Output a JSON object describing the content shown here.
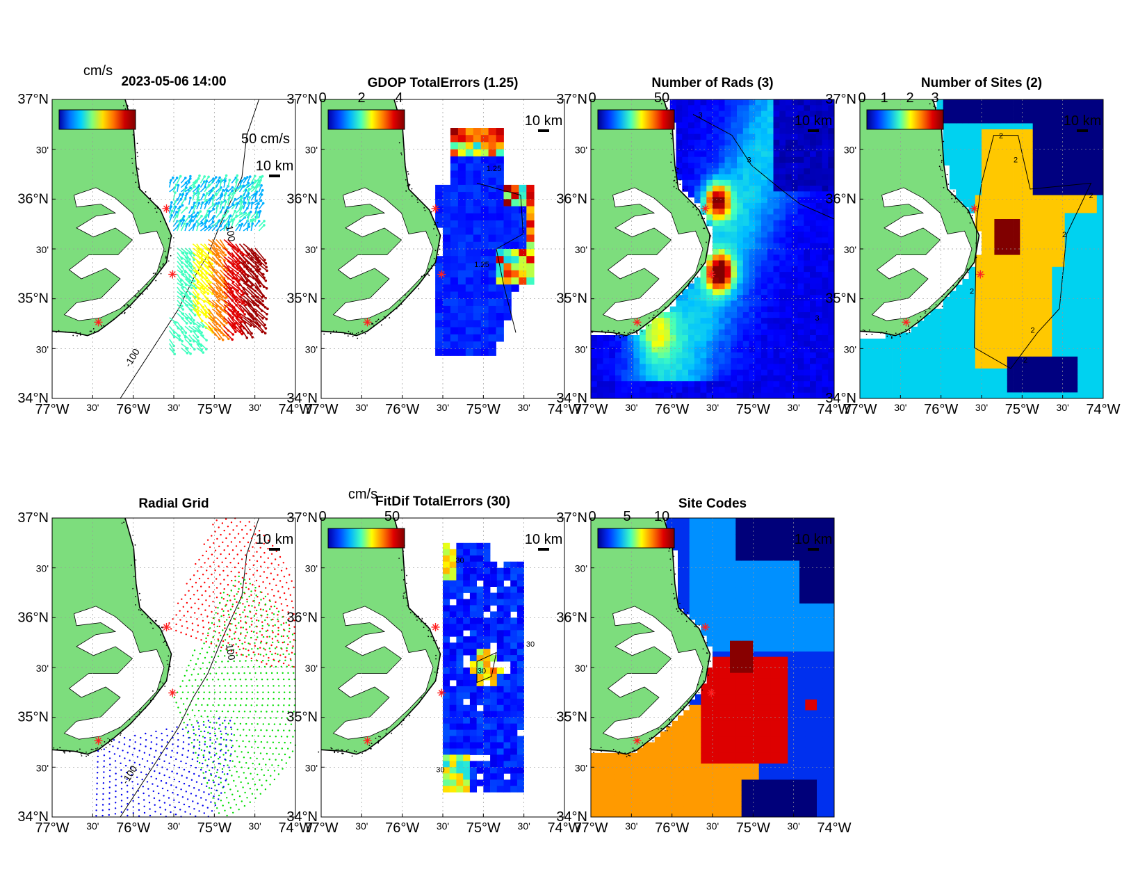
{
  "lon_ticks": [
    {
      "label": "77°W",
      "major": true
    },
    {
      "label": "30'",
      "major": false
    },
    {
      "label": "76°W",
      "major": true
    },
    {
      "label": "30'",
      "major": false
    },
    {
      "label": "75°W",
      "major": true
    },
    {
      "label": "30'",
      "major": false
    },
    {
      "label": "74°W",
      "major": true
    }
  ],
  "lat_ticks": [
    {
      "label": "37°N",
      "major": true
    },
    {
      "label": "30'",
      "major": false
    },
    {
      "label": "36°N",
      "major": true
    },
    {
      "label": "30'",
      "major": false
    },
    {
      "label": "35°N",
      "major": true
    },
    {
      "label": "30'",
      "major": false
    },
    {
      "label": "34°N",
      "major": true
    }
  ],
  "scale_bar_label": "10 km",
  "contour_label": "-100",
  "contour_label_b": "100",
  "panels": [
    {
      "id": "total-currents",
      "title": "2023-05-06 14:00",
      "colorbar": {
        "unit": "cm/s",
        "ticks": [],
        "colors": [
          "#0000aa",
          "#0070ff",
          "#00d0ff",
          "#7dff7d",
          "#ffe000",
          "#ff7000",
          "#cc0000",
          "#800000"
        ]
      },
      "reference_vector_label": "50 cm/s",
      "field": "vectors"
    },
    {
      "id": "gdop",
      "title": "GDOP TotalErrors (1.25)",
      "colorbar": {
        "unit": "",
        "ticks": [
          "0",
          "2",
          "4"
        ],
        "colors": [
          "#0000aa",
          "#0040ff",
          "#00b0ff",
          "#40ffc0",
          "#ffff00",
          "#ff8000",
          "#e00000",
          "#800000"
        ]
      },
      "contour_value": "1.25",
      "field": "gdop"
    },
    {
      "id": "num-rads",
      "title": "Number of Rads (3)",
      "colorbar": {
        "unit": "",
        "ticks": [
          "0",
          "50"
        ],
        "colors": [
          "#00008f",
          "#0030ff",
          "#00a0ff",
          "#40ffc0",
          "#ffff00",
          "#ff8000",
          "#e00000",
          "#800000"
        ]
      },
      "contour_value": "3",
      "field": "rads"
    },
    {
      "id": "num-sites",
      "title": "Number of Sites (2)",
      "colorbar": {
        "unit": "",
        "ticks": [
          "0",
          "1",
          "2",
          "3"
        ],
        "colors": [
          "#00008f",
          "#0030ff",
          "#00a0ff",
          "#40ffc0",
          "#ffff00",
          "#ff8000",
          "#e00000",
          "#800000"
        ]
      },
      "contour_value": "2",
      "field": "sites",
      "colors": {
        "one": "#00d2f0",
        "two": "#ffc800",
        "three": "#800000",
        "zero": "#000080"
      }
    },
    {
      "id": "radial-grid",
      "title": "Radial Grid",
      "colorbar": null,
      "field": "radial",
      "colors": {
        "north": "#ff0000",
        "mid": "#00dd00",
        "south": "#0000ee"
      }
    },
    {
      "id": "fitdif",
      "title": "FitDif TotalErrors (30)",
      "colorbar": {
        "unit": "cm/s",
        "ticks": [
          "0",
          "50"
        ],
        "colors": [
          "#0000aa",
          "#0040ff",
          "#00b0ff",
          "#40ffc0",
          "#ffff00",
          "#ff8000",
          "#e00000",
          "#800000"
        ]
      },
      "contour_value": "30",
      "field": "fitdif"
    },
    {
      "id": "site-codes",
      "title": "Site Codes",
      "colorbar": {
        "unit": "",
        "ticks": [
          "0",
          "5",
          "10"
        ],
        "colors": [
          "#00008f",
          "#0030ff",
          "#00a0ff",
          "#40ffc0",
          "#ffff00",
          "#ff8000",
          "#e00000",
          "#800000"
        ]
      },
      "field": "codes",
      "colors": {
        "navy": "#00007a",
        "blue": "#0030ee",
        "lightblue": "#0090ff",
        "red": "#dd0000",
        "orange": "#ff9a00",
        "maroon": "#880000"
      }
    }
  ]
}
